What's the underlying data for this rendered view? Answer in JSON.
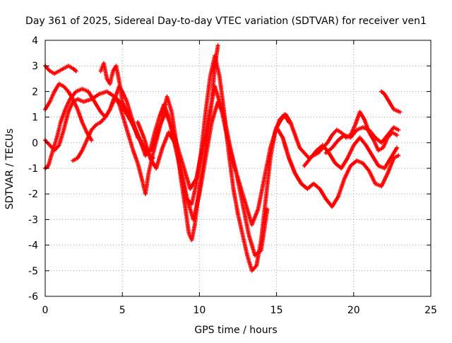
{
  "chart_data": {
    "type": "scatter",
    "title": "Day 361 of 2025, Sidereal Day-to-day VTEC variation (SDTVAR) for receiver ven1",
    "xlabel": "GPS time / hours",
    "ylabel": "SDTVAR / TECUs",
    "xlim": [
      0,
      25
    ],
    "ylim": [
      -6,
      4
    ],
    "x_ticks": [
      0,
      5,
      10,
      15,
      20,
      25
    ],
    "y_ticks": [
      -6,
      -5,
      -4,
      -3,
      -2,
      -1,
      0,
      1,
      2,
      3,
      4
    ],
    "grid": true,
    "marker": "+",
    "color": "#ff0000",
    "series": [
      {
        "x": [
          0.0,
          0.3,
          0.6,
          0.9,
          1.2,
          1.5,
          1.8,
          2.0
        ],
        "y": [
          3.0,
          2.8,
          2.7,
          2.8,
          2.9,
          3.0,
          2.9,
          2.8
        ]
      },
      {
        "x": [
          0.0,
          0.3,
          0.6,
          0.9,
          1.2,
          1.5,
          1.8,
          2.1,
          2.5,
          3.0,
          3.5,
          4.0,
          4.5,
          5.0,
          5.5,
          6.0,
          6.5,
          7.0
        ],
        "y": [
          0.1,
          -0.1,
          -0.3,
          -0.1,
          0.5,
          1.2,
          1.6,
          1.7,
          1.6,
          1.7,
          1.9,
          2.0,
          1.8,
          1.5,
          1.0,
          0.3,
          -0.3,
          -0.6
        ]
      },
      {
        "x": [
          0.0,
          0.2,
          0.5,
          0.8,
          1.0,
          1.3,
          1.6,
          2.0,
          2.4,
          2.8,
          3.2,
          3.6,
          3.9,
          4.2,
          4.5,
          4.8,
          5.0,
          5.3,
          5.6,
          6.0
        ],
        "y": [
          -1.0,
          -0.9,
          -0.3,
          0.3,
          0.8,
          1.3,
          1.7,
          2.0,
          2.1,
          2.0,
          1.6,
          1.2,
          1.0,
          1.3,
          1.7,
          2.2,
          2.0,
          1.6,
          1.0,
          0.2
        ]
      },
      {
        "x": [
          0.0,
          0.3,
          0.6,
          0.9,
          1.2,
          1.5,
          1.8,
          2.1,
          2.4,
          2.7,
          3.0
        ],
        "y": [
          1.3,
          1.6,
          2.0,
          2.3,
          2.2,
          2.0,
          1.7,
          1.3,
          0.8,
          0.4,
          0.1
        ]
      },
      {
        "x": [
          1.8,
          2.1,
          2.4,
          2.7,
          3.0,
          3.3,
          3.6,
          3.9,
          4.2,
          4.5,
          4.8,
          5.1,
          5.4,
          5.7,
          6.0,
          6.3,
          6.5,
          6.7,
          7.0,
          7.3,
          7.6,
          7.9,
          8.2,
          8.5,
          8.8,
          9.1,
          9.3,
          9.5,
          9.7,
          9.9,
          10.2,
          10.5,
          10.8,
          11.0,
          11.2
        ],
        "y": [
          -0.7,
          -0.6,
          -0.3,
          0.1,
          0.5,
          0.7,
          0.8,
          1.0,
          1.3,
          1.8,
          1.5,
          0.9,
          0.3,
          -0.3,
          -0.8,
          -1.5,
          -2.0,
          -1.2,
          -0.4,
          0.3,
          1.0,
          1.8,
          1.2,
          0.0,
          -1.4,
          -2.6,
          -3.5,
          -3.8,
          -3.2,
          -2.2,
          -1.0,
          0.2,
          1.6,
          3.0,
          3.8
        ]
      },
      {
        "x": [
          3.6,
          3.8,
          4.0,
          4.2,
          4.4,
          4.6,
          4.8,
          5.0,
          5.3,
          5.6,
          5.9,
          6.2,
          6.5,
          6.8,
          7.1,
          7.4,
          7.7,
          8.0,
          8.3,
          8.6,
          8.9,
          9.2,
          9.5,
          9.8,
          10.1,
          10.4,
          10.7,
          11.0,
          11.3,
          11.6,
          11.9,
          12.2,
          12.5,
          12.8,
          13.1,
          13.4,
          13.7,
          14.0,
          14.3,
          14.6,
          14.9,
          15.2,
          15.5,
          15.8
        ],
        "y": [
          2.8,
          3.1,
          2.5,
          2.3,
          2.8,
          3.0,
          2.4,
          1.6,
          1.2,
          0.8,
          0.4,
          0.0,
          -0.5,
          -0.3,
          0.4,
          1.0,
          1.5,
          1.0,
          0.2,
          -0.6,
          -1.5,
          -2.2,
          -2.4,
          -1.6,
          -0.4,
          1.2,
          2.6,
          3.4,
          2.6,
          1.2,
          -0.4,
          -1.8,
          -2.8,
          -3.6,
          -4.4,
          -5.0,
          -4.8,
          -3.8,
          -2.2,
          -0.6,
          0.4,
          0.9,
          1.1,
          0.8
        ]
      },
      {
        "x": [
          5.0,
          5.4,
          5.8,
          6.2,
          6.6,
          7.0,
          7.4,
          7.8,
          8.2,
          8.6,
          9.0,
          9.4,
          9.8,
          10.2,
          10.6,
          11.0,
          11.4,
          11.8,
          12.2,
          12.6,
          13.0,
          13.4,
          13.8,
          14.2,
          14.6,
          15.0,
          15.4,
          15.8,
          16.2,
          16.6,
          17.0
        ],
        "y": [
          1.4,
          1.0,
          0.6,
          0.0,
          -0.4,
          -0.2,
          0.6,
          1.2,
          0.6,
          -0.2,
          -1.0,
          -1.8,
          -1.4,
          -0.2,
          1.0,
          2.2,
          1.4,
          0.2,
          -0.8,
          -1.6,
          -2.4,
          -3.2,
          -2.6,
          -1.4,
          -0.2,
          0.6,
          0.2,
          -0.6,
          -1.2,
          -1.6,
          -1.8
        ]
      },
      {
        "x": [
          6.0,
          6.4,
          6.8,
          7.2,
          7.6,
          8.0,
          8.4,
          8.8,
          9.2,
          9.6,
          10.0,
          10.4,
          10.8,
          11.2,
          11.6,
          12.0,
          12.4,
          12.8,
          13.2,
          13.6,
          14.0,
          14.4
        ],
        "y": [
          0.8,
          0.2,
          -0.6,
          -1.0,
          -0.2,
          0.4,
          0.0,
          -1.0,
          -2.2,
          -3.0,
          -2.0,
          -0.6,
          0.8,
          1.6,
          1.0,
          -0.2,
          -1.2,
          -2.4,
          -3.6,
          -4.4,
          -4.2,
          -2.6
        ]
      },
      {
        "x": [
          15.0,
          15.3,
          15.6,
          15.9,
          16.2,
          16.5,
          16.8,
          17.1,
          17.4,
          17.7,
          18.0,
          18.3,
          18.6,
          18.9,
          19.2,
          19.5,
          19.8,
          20.1,
          20.4,
          20.7,
          21.0,
          21.3,
          21.6,
          21.9,
          22.2,
          22.5,
          22.8
        ],
        "y": [
          0.6,
          0.9,
          1.1,
          0.8,
          0.3,
          -0.2,
          -0.4,
          -0.6,
          -0.5,
          -0.4,
          -0.2,
          0.0,
          0.3,
          0.5,
          0.4,
          0.2,
          0.3,
          0.7,
          1.2,
          0.9,
          0.4,
          0.1,
          -0.3,
          -0.2,
          0.2,
          0.4,
          0.3
        ]
      },
      {
        "x": [
          15.4,
          15.8,
          16.2,
          16.6,
          17.0,
          17.4,
          17.8,
          18.2,
          18.6,
          19.0,
          19.4,
          19.8,
          20.2,
          20.6,
          21.0,
          21.4,
          21.8,
          22.2,
          22.6,
          22.9
        ],
        "y": [
          0.2,
          -0.6,
          -1.2,
          -1.6,
          -1.8,
          -1.6,
          -1.8,
          -2.2,
          -2.5,
          -2.1,
          -1.4,
          -0.9,
          -0.7,
          -0.8,
          -1.1,
          -1.6,
          -1.7,
          -1.2,
          -0.6,
          -0.5
        ]
      },
      {
        "x": [
          16.8,
          17.2,
          17.6,
          18.0,
          18.4,
          18.8,
          19.2,
          19.6,
          20.0,
          20.4,
          20.8,
          21.2,
          21.6,
          22.0,
          22.4,
          22.8
        ],
        "y": [
          -0.9,
          -0.6,
          -0.3,
          -0.1,
          -0.4,
          -0.8,
          -1.0,
          -0.6,
          -0.1,
          0.2,
          -0.1,
          -0.5,
          -0.9,
          -1.0,
          -0.6,
          -0.2
        ]
      },
      {
        "x": [
          18.2,
          18.6,
          19.0,
          19.4,
          19.8,
          20.2,
          20.6,
          21.0,
          21.4,
          21.8,
          22.2,
          22.6,
          22.9
        ],
        "y": [
          -0.4,
          -0.2,
          0.1,
          0.3,
          0.2,
          0.5,
          0.6,
          0.5,
          0.2,
          0.0,
          0.3,
          0.6,
          0.5
        ]
      },
      {
        "x": [
          21.8,
          22.0,
          22.2,
          22.4,
          22.6,
          22.8,
          23.0
        ],
        "y": [
          2.0,
          1.9,
          1.7,
          1.5,
          1.3,
          1.25,
          1.2
        ]
      }
    ]
  }
}
